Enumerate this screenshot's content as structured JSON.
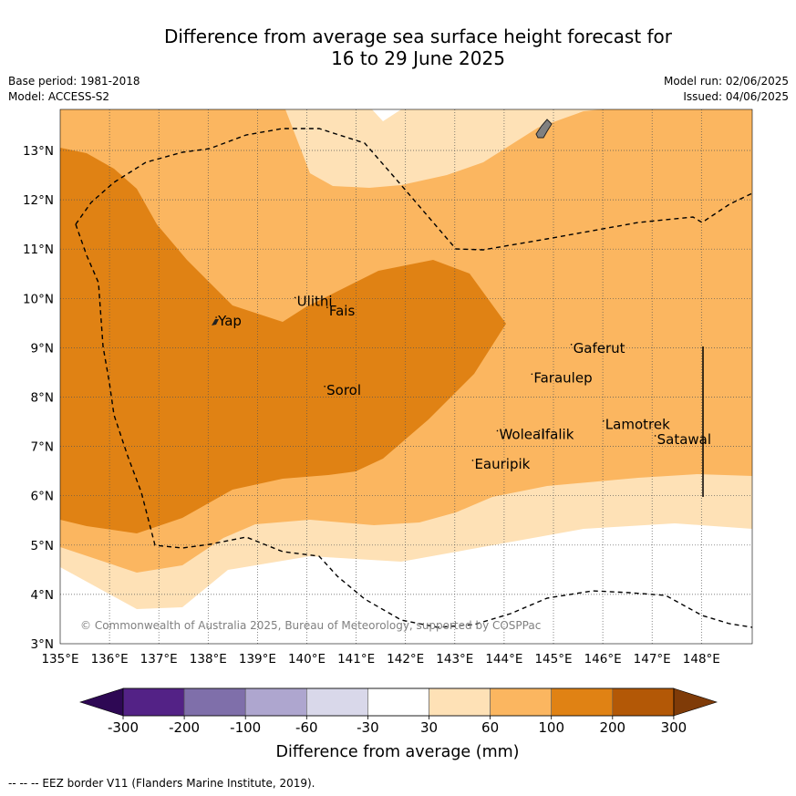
{
  "title_line1": "Difference from average sea surface height forecast for",
  "title_line2": "16 to 29 June 2025",
  "base_period": "Base period: 1981-2018",
  "model": "Model: ACCESS-S2",
  "model_run": "Model run: 02/06/2025",
  "issued": "Issued: 04/06/2025",
  "copyright": "© Commonwealth of Australia 2025, Bureau of Meteorology, supported by COSPPac",
  "footnote": "--  --  -- EEZ border V11 (Flanders Marine Institute, 2019).",
  "colorbar": {
    "label": "Difference from average (mm)",
    "tick_labels": [
      "-300",
      "-200",
      "-100",
      "-60",
      "-30",
      "30",
      "60",
      "100",
      "200",
      "300"
    ],
    "colors": [
      "#2e0854",
      "#532286",
      "#7f6faa",
      "#aea6cf",
      "#d9d8ea",
      "#ffffff",
      "#fee1b6",
      "#fbb660",
      "#e08214",
      "#b35806",
      "#7f3b08"
    ]
  },
  "map": {
    "lon_range": [
      135,
      149
    ],
    "lat_range": [
      3,
      13.8
    ],
    "lon_labels": [
      "135°E",
      "136°E",
      "137°E",
      "138°E",
      "139°E",
      "140°E",
      "141°E",
      "142°E",
      "143°E",
      "144°E",
      "145°E",
      "146°E",
      "147°E",
      "148°E"
    ],
    "lat_labels": [
      "3°N",
      "4°N",
      "5°N",
      "6°N",
      "7°N",
      "8°N",
      "9°N",
      "10°N",
      "11°N",
      "12°N",
      "13°N"
    ],
    "grid": true,
    "places": [
      {
        "name": "Ulithi",
        "lon": 139.8,
        "lat": 9.85
      },
      {
        "name": "Fais",
        "lon": 140.45,
        "lat": 9.65
      },
      {
        "name": "Yap",
        "lon": 138.2,
        "lat": 9.45
      },
      {
        "name": "Gaferut",
        "lon": 145.4,
        "lat": 8.9
      },
      {
        "name": "Faraulep",
        "lon": 144.6,
        "lat": 8.3
      },
      {
        "name": "Sorol",
        "lon": 140.4,
        "lat": 8.05
      },
      {
        "name": "Woleai",
        "lon": 143.9,
        "lat": 7.15
      },
      {
        "name": "Ifalik",
        "lon": 144.75,
        "lat": 7.15
      },
      {
        "name": "Lamotrek",
        "lon": 146.05,
        "lat": 7.35
      },
      {
        "name": "Satawal",
        "lon": 147.1,
        "lat": 7.05
      },
      {
        "name": "Eauripik",
        "lon": 143.4,
        "lat": 6.55
      }
    ]
  }
}
